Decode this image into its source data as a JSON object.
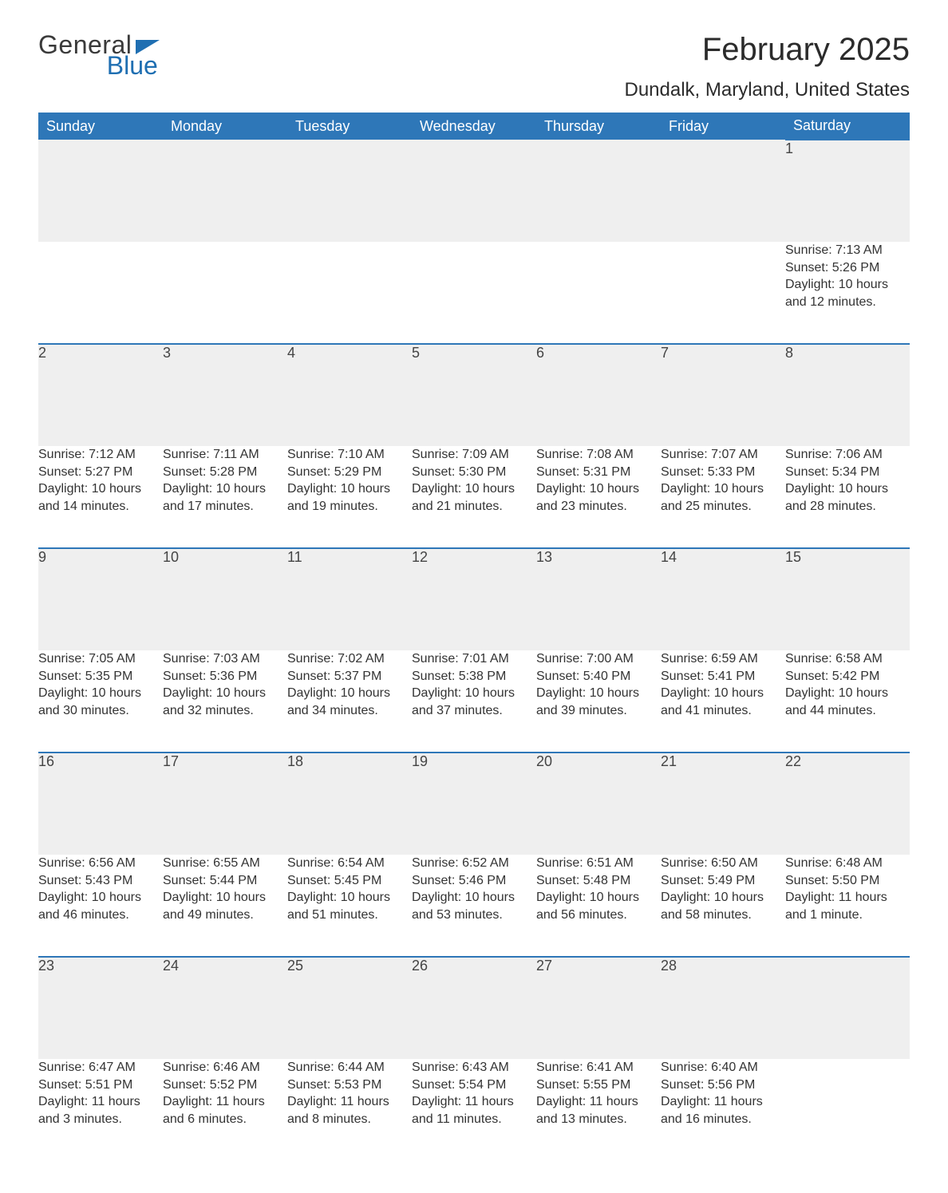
{
  "colors": {
    "header_bg": "#2e77b8",
    "header_text": "#ffffff",
    "daynum_bg": "#efefef",
    "row_divider": "#2e77b8",
    "body_text": "#333333",
    "title_text": "#2b2b2b",
    "logo_gray": "#3a3a3a",
    "logo_blue": "#1f6fb2",
    "page_bg": "#ffffff"
  },
  "typography": {
    "month_title_fontsize": 40,
    "location_fontsize": 24,
    "weekday_fontsize": 18,
    "daynum_fontsize": 18,
    "cell_fontsize": 16,
    "logo_fontsize": 32
  },
  "logo": {
    "line1": "General",
    "line2": "Blue"
  },
  "title": "February 2025",
  "location": "Dundalk, Maryland, United States",
  "weekdays": [
    "Sunday",
    "Monday",
    "Tuesday",
    "Wednesday",
    "Thursday",
    "Friday",
    "Saturday"
  ],
  "calendar": {
    "type": "table",
    "columns": 7,
    "weeks": [
      {
        "days": [
          null,
          null,
          null,
          null,
          null,
          null,
          {
            "n": "1",
            "sunrise": "Sunrise: 7:13 AM",
            "sunset": "Sunset: 5:26 PM",
            "daylight": "Daylight: 10 hours and 12 minutes."
          }
        ]
      },
      {
        "days": [
          {
            "n": "2",
            "sunrise": "Sunrise: 7:12 AM",
            "sunset": "Sunset: 5:27 PM",
            "daylight": "Daylight: 10 hours and 14 minutes."
          },
          {
            "n": "3",
            "sunrise": "Sunrise: 7:11 AM",
            "sunset": "Sunset: 5:28 PM",
            "daylight": "Daylight: 10 hours and 17 minutes."
          },
          {
            "n": "4",
            "sunrise": "Sunrise: 7:10 AM",
            "sunset": "Sunset: 5:29 PM",
            "daylight": "Daylight: 10 hours and 19 minutes."
          },
          {
            "n": "5",
            "sunrise": "Sunrise: 7:09 AM",
            "sunset": "Sunset: 5:30 PM",
            "daylight": "Daylight: 10 hours and 21 minutes."
          },
          {
            "n": "6",
            "sunrise": "Sunrise: 7:08 AM",
            "sunset": "Sunset: 5:31 PM",
            "daylight": "Daylight: 10 hours and 23 minutes."
          },
          {
            "n": "7",
            "sunrise": "Sunrise: 7:07 AM",
            "sunset": "Sunset: 5:33 PM",
            "daylight": "Daylight: 10 hours and 25 minutes."
          },
          {
            "n": "8",
            "sunrise": "Sunrise: 7:06 AM",
            "sunset": "Sunset: 5:34 PM",
            "daylight": "Daylight: 10 hours and 28 minutes."
          }
        ]
      },
      {
        "days": [
          {
            "n": "9",
            "sunrise": "Sunrise: 7:05 AM",
            "sunset": "Sunset: 5:35 PM",
            "daylight": "Daylight: 10 hours and 30 minutes."
          },
          {
            "n": "10",
            "sunrise": "Sunrise: 7:03 AM",
            "sunset": "Sunset: 5:36 PM",
            "daylight": "Daylight: 10 hours and 32 minutes."
          },
          {
            "n": "11",
            "sunrise": "Sunrise: 7:02 AM",
            "sunset": "Sunset: 5:37 PM",
            "daylight": "Daylight: 10 hours and 34 minutes."
          },
          {
            "n": "12",
            "sunrise": "Sunrise: 7:01 AM",
            "sunset": "Sunset: 5:38 PM",
            "daylight": "Daylight: 10 hours and 37 minutes."
          },
          {
            "n": "13",
            "sunrise": "Sunrise: 7:00 AM",
            "sunset": "Sunset: 5:40 PM",
            "daylight": "Daylight: 10 hours and 39 minutes."
          },
          {
            "n": "14",
            "sunrise": "Sunrise: 6:59 AM",
            "sunset": "Sunset: 5:41 PM",
            "daylight": "Daylight: 10 hours and 41 minutes."
          },
          {
            "n": "15",
            "sunrise": "Sunrise: 6:58 AM",
            "sunset": "Sunset: 5:42 PM",
            "daylight": "Daylight: 10 hours and 44 minutes."
          }
        ]
      },
      {
        "days": [
          {
            "n": "16",
            "sunrise": "Sunrise: 6:56 AM",
            "sunset": "Sunset: 5:43 PM",
            "daylight": "Daylight: 10 hours and 46 minutes."
          },
          {
            "n": "17",
            "sunrise": "Sunrise: 6:55 AM",
            "sunset": "Sunset: 5:44 PM",
            "daylight": "Daylight: 10 hours and 49 minutes."
          },
          {
            "n": "18",
            "sunrise": "Sunrise: 6:54 AM",
            "sunset": "Sunset: 5:45 PM",
            "daylight": "Daylight: 10 hours and 51 minutes."
          },
          {
            "n": "19",
            "sunrise": "Sunrise: 6:52 AM",
            "sunset": "Sunset: 5:46 PM",
            "daylight": "Daylight: 10 hours and 53 minutes."
          },
          {
            "n": "20",
            "sunrise": "Sunrise: 6:51 AM",
            "sunset": "Sunset: 5:48 PM",
            "daylight": "Daylight: 10 hours and 56 minutes."
          },
          {
            "n": "21",
            "sunrise": "Sunrise: 6:50 AM",
            "sunset": "Sunset: 5:49 PM",
            "daylight": "Daylight: 10 hours and 58 minutes."
          },
          {
            "n": "22",
            "sunrise": "Sunrise: 6:48 AM",
            "sunset": "Sunset: 5:50 PM",
            "daylight": "Daylight: 11 hours and 1 minute."
          }
        ]
      },
      {
        "days": [
          {
            "n": "23",
            "sunrise": "Sunrise: 6:47 AM",
            "sunset": "Sunset: 5:51 PM",
            "daylight": "Daylight: 11 hours and 3 minutes."
          },
          {
            "n": "24",
            "sunrise": "Sunrise: 6:46 AM",
            "sunset": "Sunset: 5:52 PM",
            "daylight": "Daylight: 11 hours and 6 minutes."
          },
          {
            "n": "25",
            "sunrise": "Sunrise: 6:44 AM",
            "sunset": "Sunset: 5:53 PM",
            "daylight": "Daylight: 11 hours and 8 minutes."
          },
          {
            "n": "26",
            "sunrise": "Sunrise: 6:43 AM",
            "sunset": "Sunset: 5:54 PM",
            "daylight": "Daylight: 11 hours and 11 minutes."
          },
          {
            "n": "27",
            "sunrise": "Sunrise: 6:41 AM",
            "sunset": "Sunset: 5:55 PM",
            "daylight": "Daylight: 11 hours and 13 minutes."
          },
          {
            "n": "28",
            "sunrise": "Sunrise: 6:40 AM",
            "sunset": "Sunset: 5:56 PM",
            "daylight": "Daylight: 11 hours and 16 minutes."
          },
          null
        ]
      }
    ]
  }
}
